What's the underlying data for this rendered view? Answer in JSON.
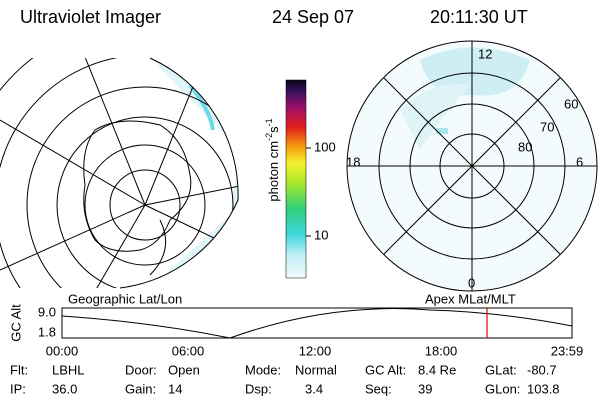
{
  "header": {
    "title": "Ultraviolet Imager",
    "date": "24 Sep 07",
    "time": "20:11:30 UT"
  },
  "left_panel": {
    "label": "Geographic Lat/Lon"
  },
  "colorbar": {
    "ticks": [
      "100",
      "10"
    ],
    "unit": {
      "base": "photon cm",
      "exp1": "-2",
      "mid": "s",
      "exp2": "-1"
    }
  },
  "right_panel": {
    "label": "Apex MLat/MLT",
    "mlt_labels": [
      "12",
      "18",
      "6",
      "0"
    ],
    "lat_labels": [
      "60",
      "70",
      "80"
    ]
  },
  "altitude_strip": {
    "axis_label": "GC Alt",
    "yticks": [
      "9.0",
      "1.8"
    ],
    "xticks": [
      "00:00",
      "06:00",
      "12:00",
      "18:00",
      "23:59"
    ]
  },
  "footer": {
    "rows": [
      [
        {
          "label": "Flt:",
          "value": "LBHL"
        },
        {
          "label": "Door:",
          "value": "Open"
        },
        {
          "label": "Mode:",
          "value": "Normal"
        },
        {
          "label": "GC Alt:",
          "value": "8.4 Re"
        },
        {
          "label": "GLat:",
          "value": "-80.7"
        }
      ],
      [
        {
          "label": "IP:",
          "value": "36.0"
        },
        {
          "label": "Gain:",
          "value": "14"
        },
        {
          "label": "Dsp:",
          "value": "3.4"
        },
        {
          "label": "Seq:",
          "value": "39"
        },
        {
          "label": "GLon:",
          "value": "103.8"
        }
      ]
    ]
  }
}
